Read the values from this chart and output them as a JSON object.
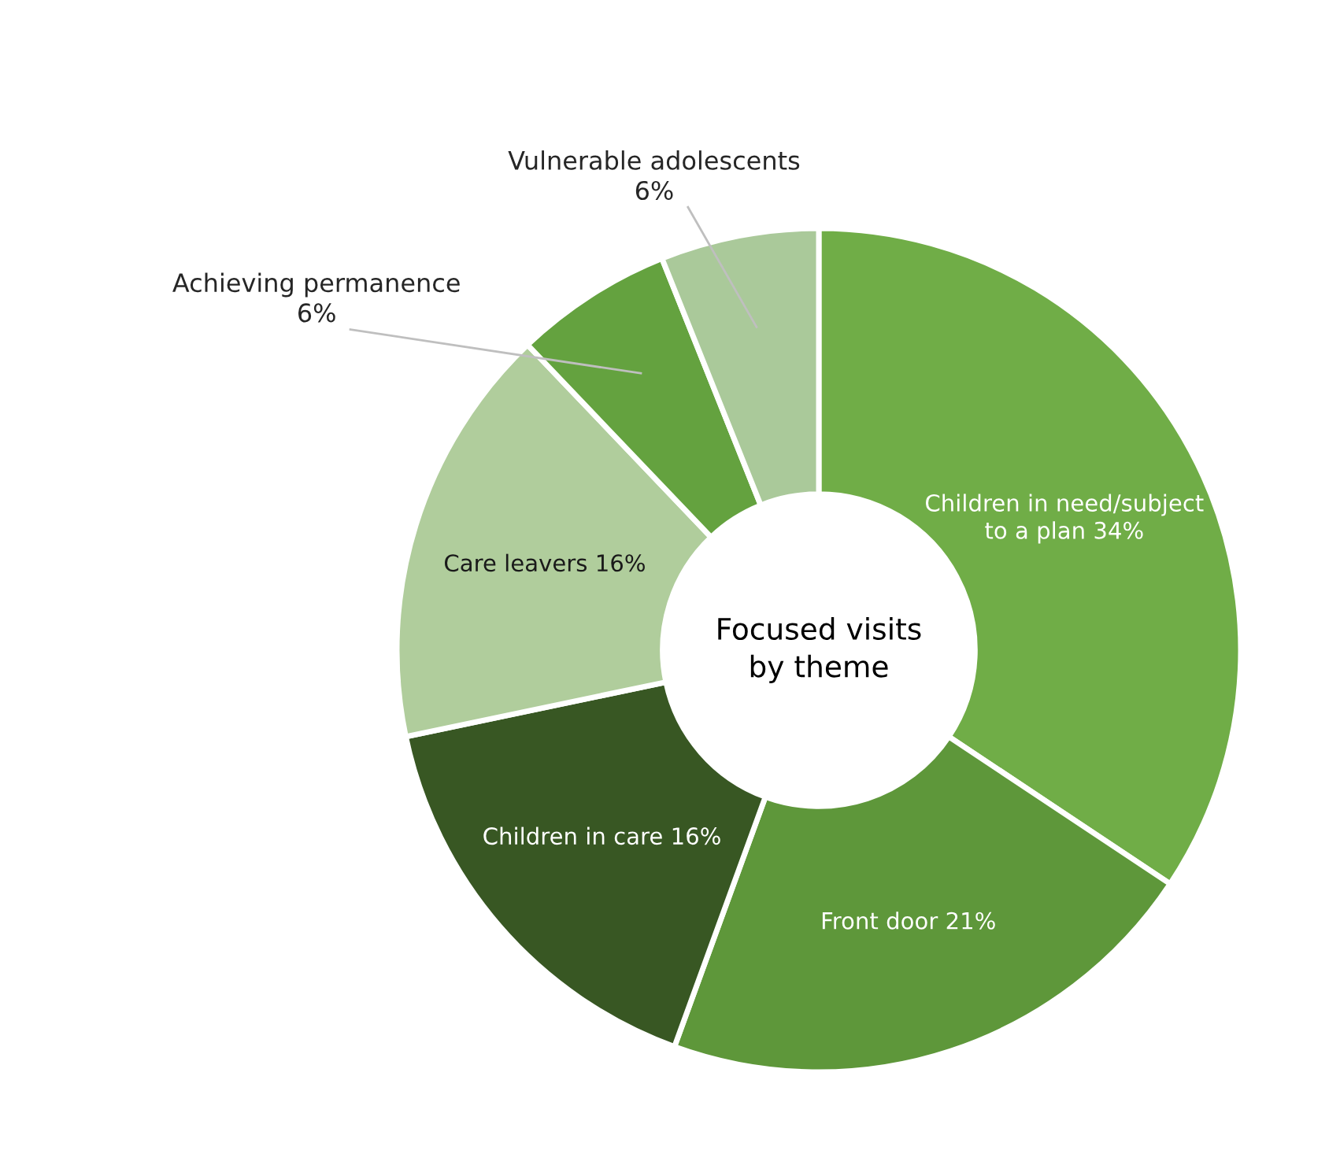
{
  "chart_data": {
    "type": "donut",
    "title": "Focused visits by theme",
    "categories": [
      "Children in need/subject to a plan",
      "Front door",
      "Children in care",
      "Care leavers",
      "Achieving permanence",
      "Vulnerable adolescents"
    ],
    "values": [
      34,
      21,
      16,
      16,
      6,
      6
    ],
    "value_labels": [
      "34%",
      "21%",
      "16%",
      "16%",
      "6%",
      "6%"
    ],
    "colors": [
      "#70ad47",
      "#5e973a",
      "#385723",
      "#b0cd9c",
      "#64a23f",
      "#aac99a"
    ],
    "legend": false
  }
}
